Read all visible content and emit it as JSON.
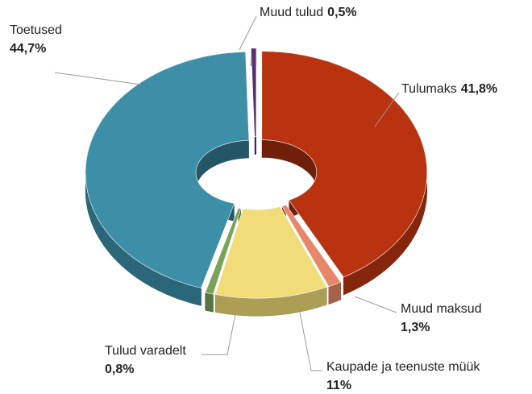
{
  "chart_data": {
    "type": "donut3d",
    "categories": [
      "Tulumaks",
      "Muud maksud",
      "Kaupade ja teenuste müük",
      "Tulud varadelt",
      "Toetused",
      "Muud tulud"
    ],
    "values": [
      41.8,
      1.3,
      11,
      0.8,
      44.7,
      0.5
    ],
    "value_labels": [
      "41,8%",
      "1,3%",
      "11%",
      "0,8%",
      "44,7%",
      "0,5%"
    ],
    "colors": [
      "#b93311",
      "#e8866a",
      "#f0dc78",
      "#7aa35a",
      "#3d8fa8",
      "#5b2c6f"
    ]
  }
}
